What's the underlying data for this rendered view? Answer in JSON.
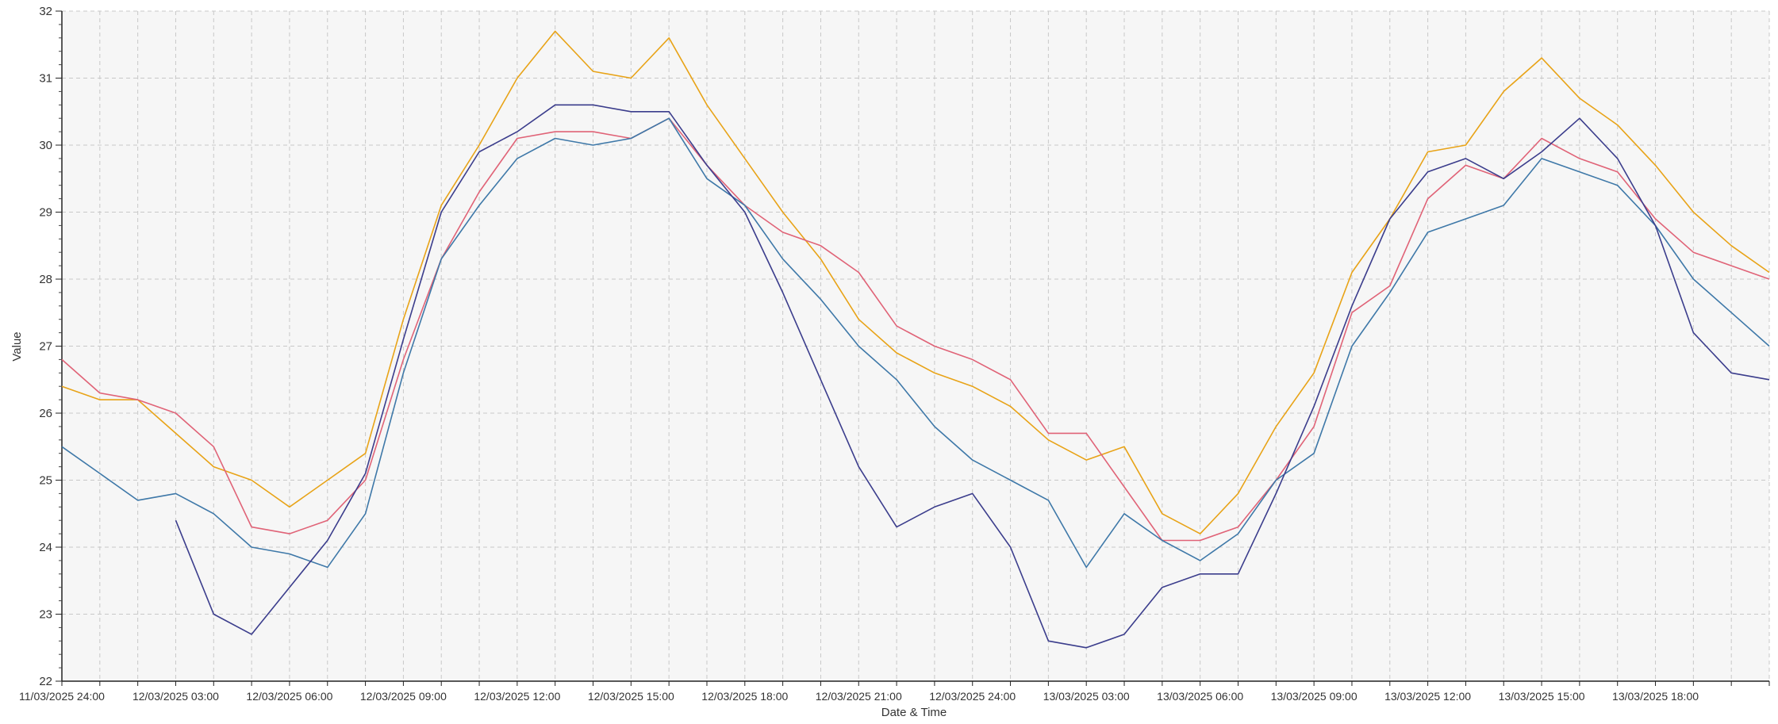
{
  "chart_data": {
    "type": "line",
    "xlabel": "Date & Time",
    "ylabel": "Value",
    "ylim": [
      22,
      32
    ],
    "yticks": [
      22,
      23,
      24,
      25,
      26,
      27,
      28,
      29,
      30,
      31,
      32
    ],
    "xlim": [
      0,
      45
    ],
    "xtick_labels": [
      {
        "pos": 0,
        "label": "11/03/2025 24:00"
      },
      {
        "pos": 3,
        "label": "12/03/2025 03:00"
      },
      {
        "pos": 6,
        "label": "12/03/2025 06:00"
      },
      {
        "pos": 9,
        "label": "12/03/2025 09:00"
      },
      {
        "pos": 12,
        "label": "12/03/2025 12:00"
      },
      {
        "pos": 15,
        "label": "12/03/2025 15:00"
      },
      {
        "pos": 18,
        "label": "12/03/2025 18:00"
      },
      {
        "pos": 21,
        "label": "12/03/2025 21:00"
      },
      {
        "pos": 24,
        "label": "12/03/2025 24:00"
      },
      {
        "pos": 27,
        "label": "13/03/2025 03:00"
      },
      {
        "pos": 30,
        "label": "13/03/2025 06:00"
      },
      {
        "pos": 33,
        "label": "13/03/2025 09:00"
      },
      {
        "pos": 36,
        "label": "13/03/2025 12:00"
      },
      {
        "pos": 39,
        "label": "13/03/2025 15:00"
      },
      {
        "pos": 42,
        "label": "13/03/2025 18:00"
      }
    ],
    "grid": true,
    "series": [
      {
        "color": "#e8a317",
        "x": [
          0,
          1,
          2,
          3,
          4,
          5,
          6,
          7,
          8,
          9,
          10,
          11,
          12,
          13,
          14,
          15,
          16,
          17,
          18,
          19,
          20,
          21,
          22,
          23,
          24,
          25,
          26,
          27,
          28,
          29,
          30,
          31,
          32,
          33,
          34,
          35,
          36,
          37,
          38,
          39,
          40,
          41,
          42,
          43,
          44,
          45
        ],
        "values": [
          26.4,
          26.2,
          26.2,
          25.7,
          25.2,
          25.0,
          24.6,
          25.0,
          25.4,
          27.4,
          29.1,
          30.0,
          31.0,
          31.7,
          31.1,
          31.0,
          31.6,
          30.6,
          29.8,
          29.0,
          28.3,
          27.4,
          26.9,
          26.6,
          26.4,
          26.1,
          25.6,
          25.3,
          25.5,
          24.5,
          24.2,
          24.8,
          25.8,
          26.6,
          28.1,
          28.9,
          29.9,
          30.0,
          30.8,
          31.3,
          30.7,
          30.3,
          29.7,
          29.0,
          28.5,
          28.1
        ]
      },
      {
        "color": "#e06377",
        "x": [
          0,
          1,
          2,
          3,
          4,
          5,
          6,
          7,
          8,
          9,
          10,
          11,
          12,
          13,
          14,
          15,
          16,
          17,
          18,
          19,
          20,
          21,
          22,
          23,
          24,
          25,
          26,
          27,
          28,
          29,
          30,
          31,
          32,
          33,
          34,
          35,
          36,
          37,
          38,
          39,
          40,
          41,
          42,
          43,
          44,
          45
        ],
        "values": [
          26.8,
          26.3,
          26.2,
          26.0,
          25.5,
          24.3,
          24.2,
          24.4,
          25.0,
          26.8,
          28.3,
          29.3,
          30.1,
          30.2,
          30.2,
          30.1,
          30.4,
          29.7,
          29.1,
          28.7,
          28.5,
          28.1,
          27.3,
          27.0,
          26.8,
          26.5,
          25.7,
          25.7,
          24.9,
          24.1,
          24.1,
          24.3,
          25.0,
          25.8,
          27.5,
          27.9,
          29.2,
          29.7,
          29.5,
          30.1,
          29.8,
          29.6,
          28.9,
          28.4,
          28.2,
          28.0
        ]
      },
      {
        "color": "#3e78a8",
        "x": [
          0,
          1,
          2,
          3,
          4,
          5,
          6,
          7,
          8,
          9,
          10,
          11,
          12,
          13,
          14,
          15,
          16,
          17,
          18,
          19,
          20,
          21,
          22,
          23,
          24,
          25,
          26,
          27,
          28,
          29,
          30,
          31,
          32,
          33,
          34,
          35,
          36,
          37,
          38,
          39,
          40,
          41,
          42,
          43,
          44,
          45
        ],
        "values": [
          25.5,
          25.1,
          24.7,
          24.8,
          24.5,
          24.0,
          23.9,
          23.7,
          24.5,
          26.6,
          28.3,
          29.1,
          29.8,
          30.1,
          30.0,
          30.1,
          30.4,
          29.5,
          29.1,
          28.3,
          27.7,
          27.0,
          26.5,
          25.8,
          25.3,
          25.0,
          24.7,
          23.7,
          24.5,
          24.1,
          23.8,
          24.2,
          25.0,
          25.4,
          27.0,
          27.8,
          28.7,
          28.9,
          29.1,
          29.8,
          29.6,
          29.4,
          28.8,
          28.0,
          27.5,
          27.0
        ]
      },
      {
        "color": "#3b3d8c",
        "x": [
          3,
          4,
          5,
          6,
          7,
          8,
          9,
          10,
          11,
          12,
          13,
          14,
          15,
          16,
          17,
          18,
          19,
          20,
          21,
          22,
          23,
          24,
          25,
          26,
          27,
          28,
          29,
          30,
          31,
          32,
          33,
          34,
          35,
          36,
          37,
          38,
          39,
          40,
          41,
          42,
          43,
          44,
          45
        ],
        "values": [
          24.4,
          23.0,
          22.7,
          23.4,
          24.1,
          25.1,
          27.1,
          29.0,
          29.9,
          30.2,
          30.6,
          30.6,
          30.5,
          30.5,
          29.7,
          29.0,
          27.8,
          26.5,
          25.2,
          24.3,
          24.6,
          24.8,
          24.0,
          22.6,
          22.5,
          22.7,
          23.4,
          23.6,
          23.6,
          24.8,
          26.1,
          27.6,
          28.9,
          29.6,
          29.8,
          29.5,
          29.9,
          30.4,
          29.8,
          28.8,
          27.2,
          26.6,
          26.5
        ]
      }
    ]
  }
}
